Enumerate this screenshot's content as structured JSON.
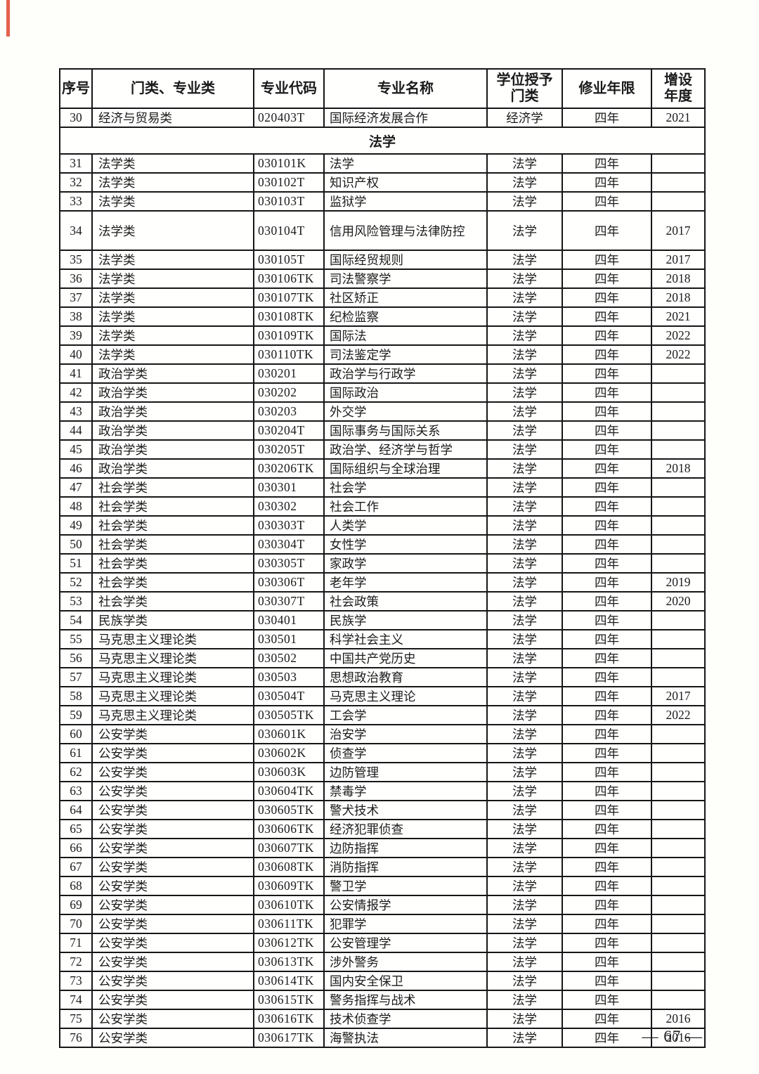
{
  "page": {
    "number_label": "— 67 —"
  },
  "table": {
    "headers": [
      "序号",
      "门类、专业类",
      "专业代码",
      "专业名称",
      "学位授予\n门类",
      "修业年限",
      "增设\n年度"
    ],
    "rows": [
      {
        "no": "30",
        "category": "经济与贸易类",
        "code": "020403T",
        "name": "国际经济发展合作",
        "degree": "经济学",
        "duration": "四年",
        "year_added": "2021"
      },
      {
        "section": "法学"
      },
      {
        "no": "31",
        "category": "法学类",
        "code": "030101K",
        "name": "法学",
        "degree": "法学",
        "duration": "四年",
        "year_added": ""
      },
      {
        "no": "32",
        "category": "法学类",
        "code": "030102T",
        "name": "知识产权",
        "degree": "法学",
        "duration": "四年",
        "year_added": ""
      },
      {
        "no": "33",
        "category": "法学类",
        "code": "030103T",
        "name": "监狱学",
        "degree": "法学",
        "duration": "四年",
        "year_added": ""
      },
      {
        "no": "34",
        "category": "法学类",
        "code": "030104T",
        "name": "信用风险管理与法律防控",
        "degree": "法学",
        "duration": "四年",
        "year_added": "2017",
        "tall": true
      },
      {
        "no": "35",
        "category": "法学类",
        "code": "030105T",
        "name": "国际经贸规则",
        "degree": "法学",
        "duration": "四年",
        "year_added": "2017"
      },
      {
        "no": "36",
        "category": "法学类",
        "code": "030106TK",
        "name": "司法警察学",
        "degree": "法学",
        "duration": "四年",
        "year_added": "2018"
      },
      {
        "no": "37",
        "category": "法学类",
        "code": "030107TK",
        "name": "社区矫正",
        "degree": "法学",
        "duration": "四年",
        "year_added": "2018"
      },
      {
        "no": "38",
        "category": "法学类",
        "code": "030108TK",
        "name": "纪检监察",
        "degree": "法学",
        "duration": "四年",
        "year_added": "2021"
      },
      {
        "no": "39",
        "category": "法学类",
        "code": "030109TK",
        "name": "国际法",
        "degree": "法学",
        "duration": "四年",
        "year_added": "2022"
      },
      {
        "no": "40",
        "category": "法学类",
        "code": "030110TK",
        "name": "司法鉴定学",
        "degree": "法学",
        "duration": "四年",
        "year_added": "2022"
      },
      {
        "no": "41",
        "category": "政治学类",
        "code": "030201",
        "name": "政治学与行政学",
        "degree": "法学",
        "duration": "四年",
        "year_added": ""
      },
      {
        "no": "42",
        "category": "政治学类",
        "code": "030202",
        "name": "国际政治",
        "degree": "法学",
        "duration": "四年",
        "year_added": ""
      },
      {
        "no": "43",
        "category": "政治学类",
        "code": "030203",
        "name": "外交学",
        "degree": "法学",
        "duration": "四年",
        "year_added": ""
      },
      {
        "no": "44",
        "category": "政治学类",
        "code": "030204T",
        "name": "国际事务与国际关系",
        "degree": "法学",
        "duration": "四年",
        "year_added": ""
      },
      {
        "no": "45",
        "category": "政治学类",
        "code": "030205T",
        "name": "政治学、经济学与哲学",
        "degree": "法学",
        "duration": "四年",
        "year_added": ""
      },
      {
        "no": "46",
        "category": "政治学类",
        "code": "030206TK",
        "name": "国际组织与全球治理",
        "degree": "法学",
        "duration": "四年",
        "year_added": "2018"
      },
      {
        "no": "47",
        "category": "社会学类",
        "code": "030301",
        "name": "社会学",
        "degree": "法学",
        "duration": "四年",
        "year_added": ""
      },
      {
        "no": "48",
        "category": "社会学类",
        "code": "030302",
        "name": "社会工作",
        "degree": "法学",
        "duration": "四年",
        "year_added": ""
      },
      {
        "no": "49",
        "category": "社会学类",
        "code": "030303T",
        "name": "人类学",
        "degree": "法学",
        "duration": "四年",
        "year_added": ""
      },
      {
        "no": "50",
        "category": "社会学类",
        "code": "030304T",
        "name": "女性学",
        "degree": "法学",
        "duration": "四年",
        "year_added": ""
      },
      {
        "no": "51",
        "category": "社会学类",
        "code": "030305T",
        "name": "家政学",
        "degree": "法学",
        "duration": "四年",
        "year_added": ""
      },
      {
        "no": "52",
        "category": "社会学类",
        "code": "030306T",
        "name": "老年学",
        "degree": "法学",
        "duration": "四年",
        "year_added": "2019"
      },
      {
        "no": "53",
        "category": "社会学类",
        "code": "030307T",
        "name": "社会政策",
        "degree": "法学",
        "duration": "四年",
        "year_added": "2020"
      },
      {
        "no": "54",
        "category": "民族学类",
        "code": "030401",
        "name": "民族学",
        "degree": "法学",
        "duration": "四年",
        "year_added": ""
      },
      {
        "no": "55",
        "category": "马克思主义理论类",
        "code": "030501",
        "name": "科学社会主义",
        "degree": "法学",
        "duration": "四年",
        "year_added": ""
      },
      {
        "no": "56",
        "category": "马克思主义理论类",
        "code": "030502",
        "name": "中国共产党历史",
        "degree": "法学",
        "duration": "四年",
        "year_added": ""
      },
      {
        "no": "57",
        "category": "马克思主义理论类",
        "code": "030503",
        "name": "思想政治教育",
        "degree": "法学",
        "duration": "四年",
        "year_added": ""
      },
      {
        "no": "58",
        "category": "马克思主义理论类",
        "code": "030504T",
        "name": "马克思主义理论",
        "degree": "法学",
        "duration": "四年",
        "year_added": "2017"
      },
      {
        "no": "59",
        "category": "马克思主义理论类",
        "code": "030505TK",
        "name": "工会学",
        "degree": "法学",
        "duration": "四年",
        "year_added": "2022"
      },
      {
        "no": "60",
        "category": "公安学类",
        "code": "030601K",
        "name": "治安学",
        "degree": "法学",
        "duration": "四年",
        "year_added": ""
      },
      {
        "no": "61",
        "category": "公安学类",
        "code": "030602K",
        "name": "侦查学",
        "degree": "法学",
        "duration": "四年",
        "year_added": ""
      },
      {
        "no": "62",
        "category": "公安学类",
        "code": "030603K",
        "name": "边防管理",
        "degree": "法学",
        "duration": "四年",
        "year_added": ""
      },
      {
        "no": "63",
        "category": "公安学类",
        "code": "030604TK",
        "name": "禁毒学",
        "degree": "法学",
        "duration": "四年",
        "year_added": ""
      },
      {
        "no": "64",
        "category": "公安学类",
        "code": "030605TK",
        "name": "警犬技术",
        "degree": "法学",
        "duration": "四年",
        "year_added": ""
      },
      {
        "no": "65",
        "category": "公安学类",
        "code": "030606TK",
        "name": "经济犯罪侦查",
        "degree": "法学",
        "duration": "四年",
        "year_added": ""
      },
      {
        "no": "66",
        "category": "公安学类",
        "code": "030607TK",
        "name": "边防指挥",
        "degree": "法学",
        "duration": "四年",
        "year_added": ""
      },
      {
        "no": "67",
        "category": "公安学类",
        "code": "030608TK",
        "name": "消防指挥",
        "degree": "法学",
        "duration": "四年",
        "year_added": ""
      },
      {
        "no": "68",
        "category": "公安学类",
        "code": "030609TK",
        "name": "警卫学",
        "degree": "法学",
        "duration": "四年",
        "year_added": ""
      },
      {
        "no": "69",
        "category": "公安学类",
        "code": "030610TK",
        "name": "公安情报学",
        "degree": "法学",
        "duration": "四年",
        "year_added": ""
      },
      {
        "no": "70",
        "category": "公安学类",
        "code": "030611TK",
        "name": "犯罪学",
        "degree": "法学",
        "duration": "四年",
        "year_added": ""
      },
      {
        "no": "71",
        "category": "公安学类",
        "code": "030612TK",
        "name": "公安管理学",
        "degree": "法学",
        "duration": "四年",
        "year_added": ""
      },
      {
        "no": "72",
        "category": "公安学类",
        "code": "030613TK",
        "name": "涉外警务",
        "degree": "法学",
        "duration": "四年",
        "year_added": ""
      },
      {
        "no": "73",
        "category": "公安学类",
        "code": "030614TK",
        "name": "国内安全保卫",
        "degree": "法学",
        "duration": "四年",
        "year_added": ""
      },
      {
        "no": "74",
        "category": "公安学类",
        "code": "030615TK",
        "name": "警务指挥与战术",
        "degree": "法学",
        "duration": "四年",
        "year_added": ""
      },
      {
        "no": "75",
        "category": "公安学类",
        "code": "030616TK",
        "name": "技术侦查学",
        "degree": "法学",
        "duration": "四年",
        "year_added": "2016"
      },
      {
        "no": "76",
        "category": "公安学类",
        "code": "030617TK",
        "name": "海警执法",
        "degree": "法学",
        "duration": "四年",
        "year_added": "2016"
      }
    ]
  }
}
